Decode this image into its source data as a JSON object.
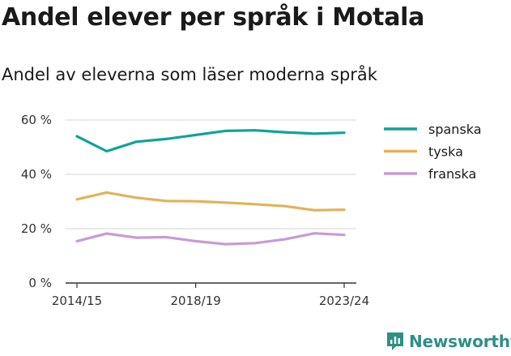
{
  "title": "Andel elever per språk i Motala",
  "subtitle": "Andel av eleverna som läser moderna språk",
  "brand": {
    "name": "Newsworthy",
    "color": "#2f8f85"
  },
  "chart_data": {
    "type": "line",
    "x": [
      "2014/15",
      "2015/16",
      "2016/17",
      "2017/18",
      "2018/19",
      "2019/20",
      "2020/21",
      "2021/22",
      "2022/23",
      "2023/24"
    ],
    "xticks": [
      "2014/15",
      "2018/19",
      "2023/24"
    ],
    "yticks": [
      "0 %",
      "20 %",
      "40 %",
      "60 %"
    ],
    "ylim": [
      0,
      60
    ],
    "grid": true,
    "legend_position": "right",
    "series": [
      {
        "name": "spanska",
        "color": "#0fa39a",
        "values": [
          54,
          48.5,
          52,
          53,
          54.5,
          56,
          56.2,
          55.5,
          55,
          55.3
        ]
      },
      {
        "name": "tyska",
        "color": "#e3b25a",
        "values": [
          30.8,
          33.3,
          31.4,
          30.2,
          30.1,
          29.6,
          29,
          28.3,
          26.8,
          27
        ]
      },
      {
        "name": "franska",
        "color": "#c79bd5",
        "values": [
          15.4,
          18.2,
          16.7,
          16.9,
          15.4,
          14.3,
          14.7,
          16.1,
          18.3,
          17.7
        ]
      }
    ]
  }
}
